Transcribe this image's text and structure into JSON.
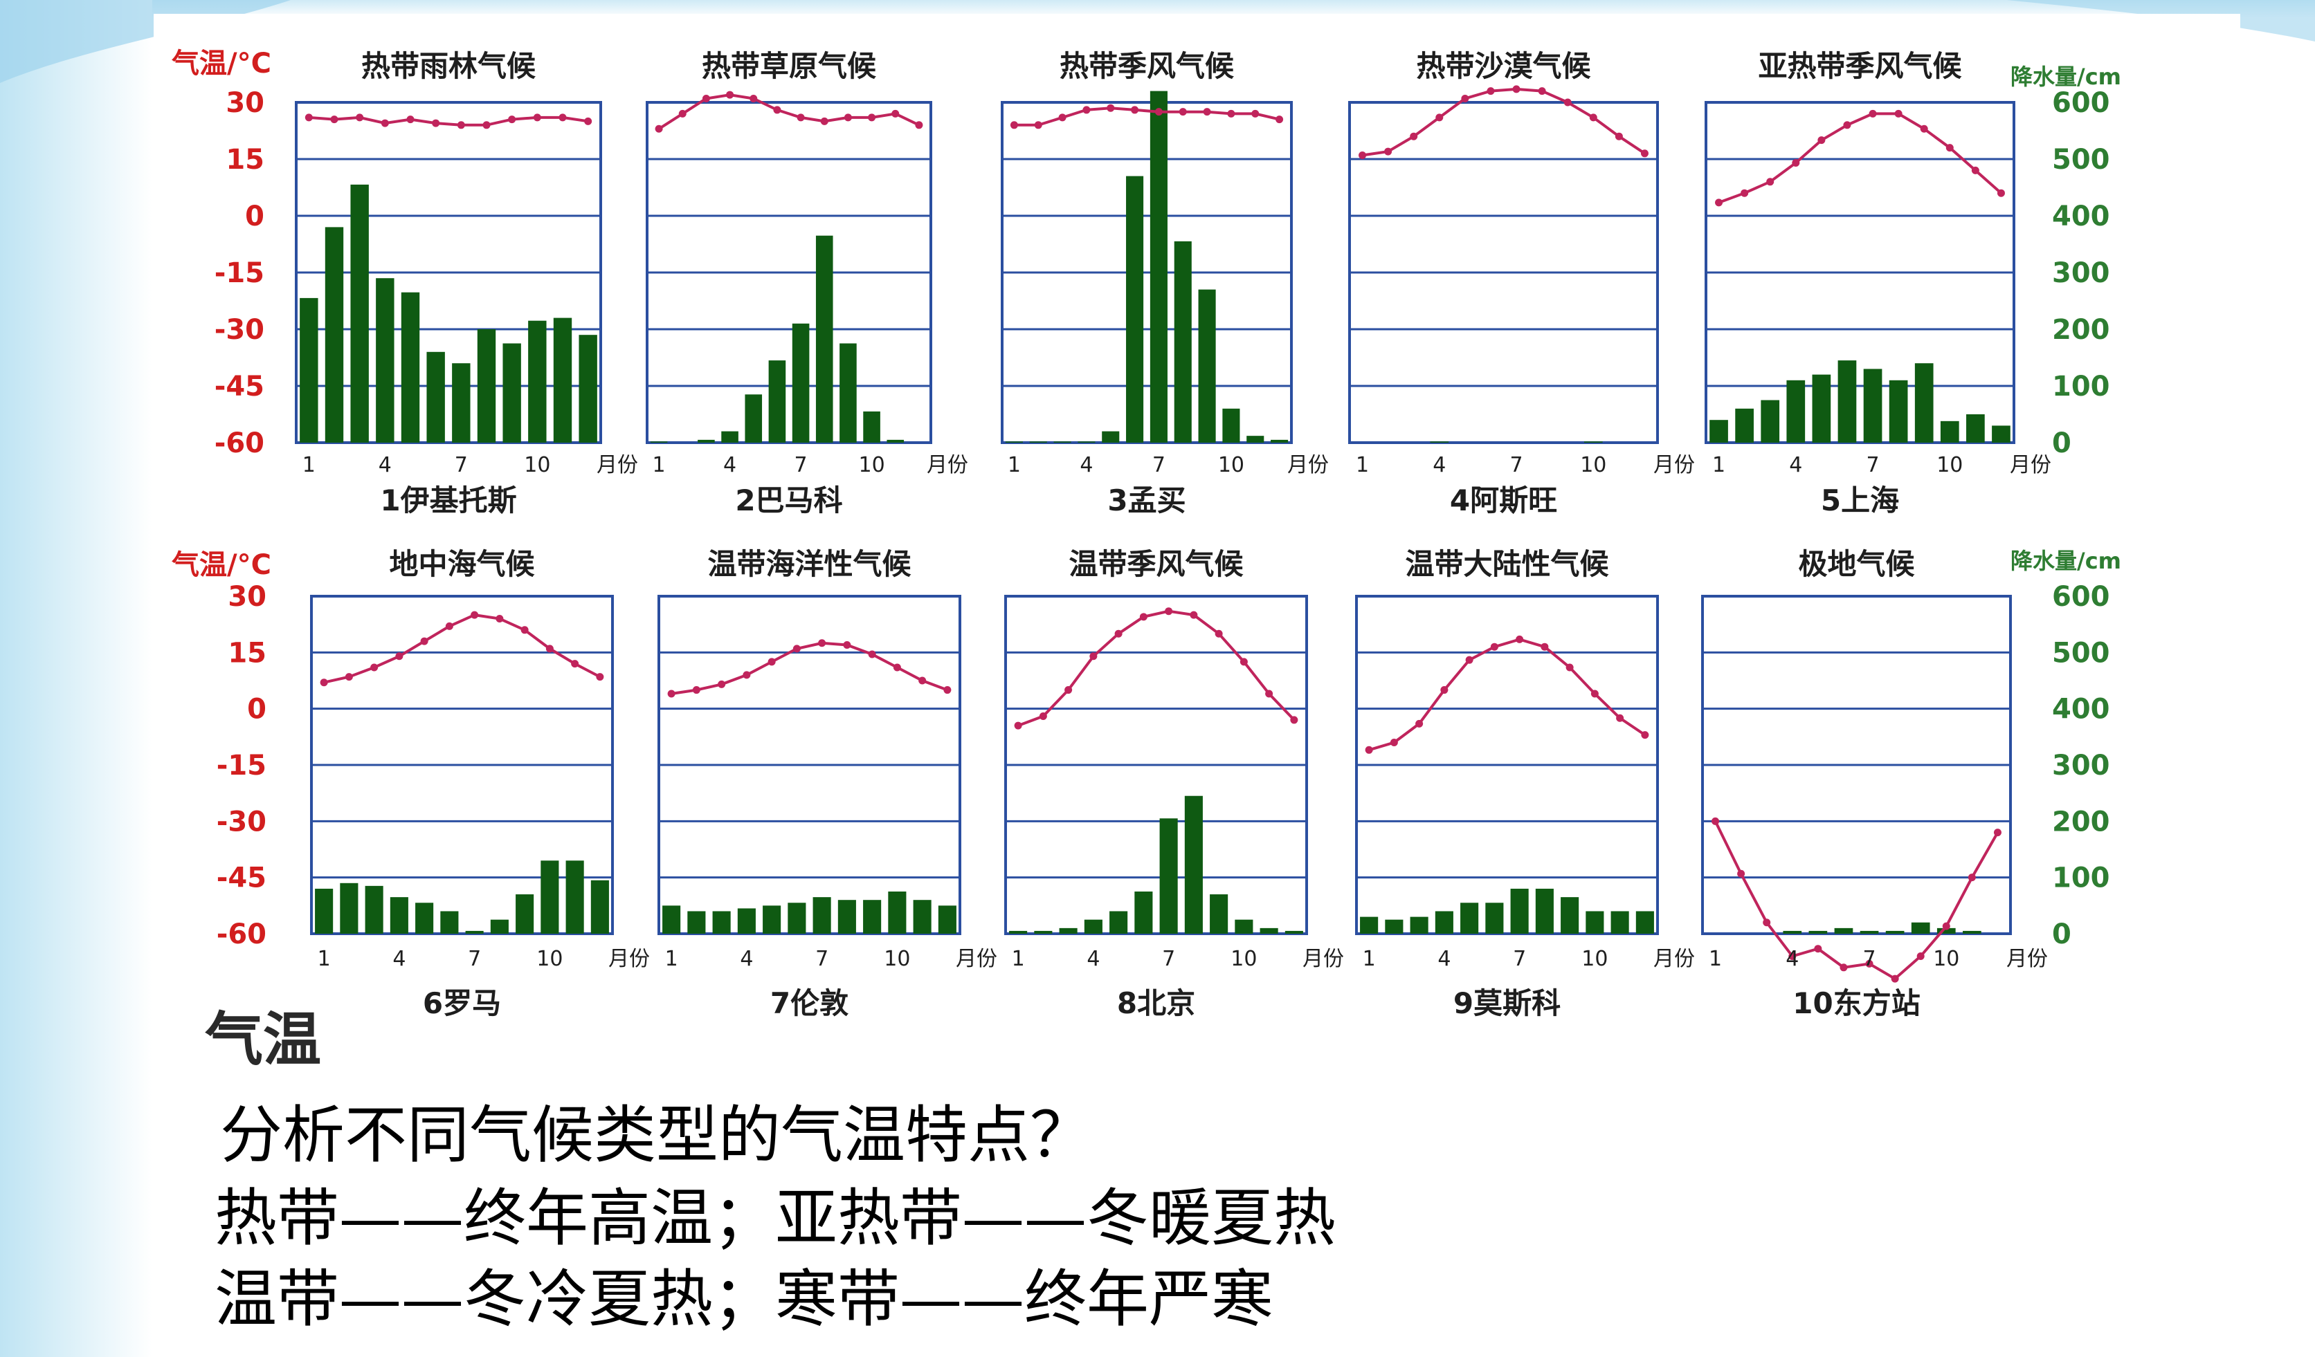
{
  "slide": {
    "figure_label": "气温",
    "question": "分析不同气候类型的气温特点？",
    "conclusions": [
      "热带——终年高温；亚热带——冬暖夏热",
      "温带——冬冷夏热；寒带——终年严寒"
    ]
  },
  "colors": {
    "temperature_line": "#c0245c",
    "precip_bar": "#0f5a12",
    "frame": "#2b4fa0",
    "left_axis_text": "#d21e1e",
    "right_axis_text": "#2e7d32",
    "title_text": "#1e1e1e"
  },
  "axes": {
    "temp_label": "气温/°C",
    "precip_label": "降水量/cm",
    "temp_ticks": [
      "30",
      "15",
      "0",
      "-15",
      "-30",
      "-45",
      "-60"
    ],
    "precip_ticks": [
      "600",
      "500",
      "400",
      "300",
      "200",
      "100",
      "0"
    ],
    "month_ticks": [
      "1",
      "4",
      "7",
      "10"
    ],
    "month_unit": "月份"
  },
  "chart_data": [
    {
      "type": "bar+line",
      "title": "热带雨林气候",
      "caption": "1伊基托斯",
      "months": [
        1,
        2,
        3,
        4,
        5,
        6,
        7,
        8,
        9,
        10,
        11,
        12
      ],
      "temperature": [
        26,
        25.5,
        26,
        24.5,
        25.5,
        24.5,
        24,
        24,
        25.5,
        26,
        26,
        25
      ],
      "precipitation": [
        255,
        380,
        455,
        290,
        265,
        160,
        140,
        200,
        175,
        215,
        220,
        190
      ],
      "temp_range": [
        -60,
        30
      ],
      "precip_range": [
        0,
        600
      ]
    },
    {
      "type": "bar+line",
      "title": "热带草原气候",
      "caption": "2巴马科",
      "months": [
        1,
        2,
        3,
        4,
        5,
        6,
        7,
        8,
        9,
        10,
        11,
        12
      ],
      "temperature": [
        23,
        27,
        31,
        32,
        31,
        28,
        26,
        25,
        26,
        26,
        27,
        24
      ],
      "precipitation": [
        2,
        0,
        5,
        20,
        85,
        145,
        210,
        365,
        175,
        55,
        5,
        0
      ],
      "temp_range": [
        -60,
        30
      ],
      "precip_range": [
        0,
        600
      ]
    },
    {
      "type": "bar+line",
      "title": "热带季风气候",
      "caption": "3孟买",
      "months": [
        1,
        2,
        3,
        4,
        5,
        6,
        7,
        8,
        9,
        10,
        11,
        12
      ],
      "temperature": [
        24,
        24,
        26,
        28,
        28.5,
        28,
        27.5,
        27.5,
        27.5,
        27,
        27,
        25.5
      ],
      "precipitation": [
        2,
        2,
        2,
        2,
        20,
        470,
        620,
        355,
        270,
        60,
        12,
        5
      ],
      "temp_range": [
        -60,
        30
      ],
      "precip_range": [
        0,
        600
      ]
    },
    {
      "type": "bar+line",
      "title": "热带沙漠气候",
      "caption": "4阿斯旺",
      "months": [
        1,
        2,
        3,
        4,
        5,
        6,
        7,
        8,
        9,
        10,
        11,
        12
      ],
      "temperature": [
        16,
        17,
        21,
        26,
        31,
        33,
        33.5,
        33,
        30,
        26,
        21,
        16.5
      ],
      "precipitation": [
        0,
        0,
        0,
        2,
        0,
        0,
        0,
        0,
        0,
        2,
        0,
        0
      ],
      "temp_range": [
        -60,
        30
      ],
      "precip_range": [
        0,
        600
      ]
    },
    {
      "type": "bar+line",
      "title": "亚热带季风气候",
      "caption": "5上海",
      "months": [
        1,
        2,
        3,
        4,
        5,
        6,
        7,
        8,
        9,
        10,
        11,
        12
      ],
      "temperature": [
        3.5,
        6,
        9,
        14,
        20,
        24,
        27,
        27,
        23,
        18,
        12,
        6
      ],
      "precipitation": [
        40,
        60,
        75,
        110,
        120,
        145,
        130,
        110,
        140,
        38,
        50,
        30
      ],
      "temp_range": [
        -60,
        30
      ],
      "precip_range": [
        0,
        600
      ]
    },
    {
      "type": "bar+line",
      "title": "地中海气候",
      "caption": "6罗马",
      "months": [
        1,
        2,
        3,
        4,
        5,
        6,
        7,
        8,
        9,
        10,
        11,
        12
      ],
      "temperature": [
        7,
        8.5,
        11,
        14,
        18,
        22,
        25,
        24,
        21,
        16,
        12,
        8.5
      ],
      "precipitation": [
        80,
        90,
        85,
        65,
        55,
        40,
        5,
        25,
        70,
        130,
        130,
        95
      ],
      "temp_range": [
        -60,
        30
      ],
      "precip_range": [
        0,
        600
      ]
    },
    {
      "type": "bar+line",
      "title": "温带海洋性气候",
      "caption": "7伦敦",
      "months": [
        1,
        2,
        3,
        4,
        5,
        6,
        7,
        8,
        9,
        10,
        11,
        12
      ],
      "temperature": [
        4,
        5,
        6.5,
        9,
        12.5,
        16,
        17.5,
        17,
        14.5,
        11,
        7.5,
        5
      ],
      "precipitation": [
        50,
        40,
        40,
        45,
        50,
        55,
        65,
        60,
        60,
        75,
        60,
        50
      ],
      "temp_range": [
        -60,
        30
      ],
      "precip_range": [
        0,
        600
      ]
    },
    {
      "type": "bar+line",
      "title": "温带季风气候",
      "caption": "8北京",
      "months": [
        1,
        2,
        3,
        4,
        5,
        6,
        7,
        8,
        9,
        10,
        11,
        12
      ],
      "temperature": [
        -4.5,
        -2,
        5,
        14,
        20,
        24.5,
        26,
        25,
        20,
        12.5,
        4,
        -3
      ],
      "precipitation": [
        5,
        5,
        10,
        25,
        40,
        75,
        205,
        245,
        70,
        25,
        10,
        5
      ],
      "temp_range": [
        -60,
        30
      ],
      "precip_range": [
        0,
        600
      ]
    },
    {
      "type": "bar+line",
      "title": "温带大陆性气候",
      "caption": "9莫斯科",
      "months": [
        1,
        2,
        3,
        4,
        5,
        6,
        7,
        8,
        9,
        10,
        11,
        12
      ],
      "temperature": [
        -11,
        -9,
        -4,
        5,
        13,
        16.5,
        18.5,
        16.5,
        11,
        4,
        -2.5,
        -7
      ],
      "precipitation": [
        30,
        25,
        30,
        40,
        55,
        55,
        80,
        80,
        65,
        40,
        40,
        40
      ],
      "temp_range": [
        -60,
        30
      ],
      "precip_range": [
        0,
        600
      ]
    },
    {
      "type": "bar+line",
      "title": "极地气候",
      "caption": "10东方站",
      "months": [
        1,
        2,
        3,
        4,
        5,
        6,
        7,
        8,
        9,
        10,
        11,
        12
      ],
      "temperature": [
        -30,
        -44,
        -57,
        -66,
        -64,
        -69,
        -68,
        -72,
        -66,
        -58,
        -45,
        -33
      ],
      "precipitation": [
        0,
        0,
        0,
        5,
        5,
        10,
        5,
        5,
        20,
        10,
        5,
        0
      ],
      "temp_range": [
        -60,
        30
      ],
      "precip_range": [
        0,
        600
      ]
    }
  ]
}
